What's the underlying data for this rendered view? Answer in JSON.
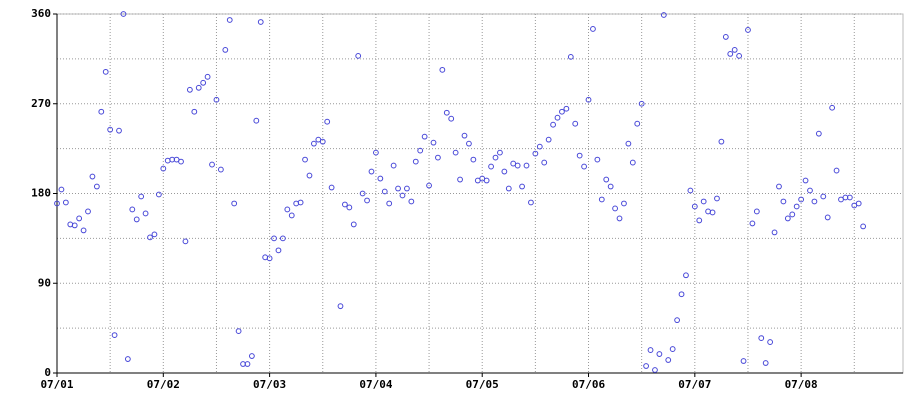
{
  "chart_data": {
    "type": "scatter",
    "x": [
      0,
      1,
      2,
      3,
      4,
      5,
      6,
      7,
      8,
      9,
      10,
      11,
      12,
      13,
      14,
      15,
      16,
      17,
      18,
      19,
      20,
      21,
      22,
      23,
      24,
      25,
      26,
      27,
      28,
      29,
      30,
      31,
      32,
      33,
      34,
      35,
      36,
      37,
      38,
      39,
      40,
      41,
      42,
      43,
      44,
      45,
      46,
      47,
      48,
      49,
      50,
      51,
      52,
      53,
      54,
      55,
      56,
      57,
      58,
      59,
      60,
      61,
      62,
      64,
      65,
      66,
      67,
      68,
      69,
      70,
      71,
      72,
      73,
      74,
      75,
      76,
      77,
      78,
      79,
      80,
      81,
      82,
      83,
      84,
      85,
      86,
      87,
      88,
      89,
      90,
      91,
      92,
      93,
      94,
      95,
      96,
      97,
      98,
      99,
      100,
      101,
      102,
      103,
      104,
      105,
      106,
      107,
      108,
      109,
      110,
      111,
      112,
      113,
      114,
      115,
      116,
      117,
      118,
      119,
      120,
      121,
      122,
      123,
      124,
      125,
      126,
      127,
      128,
      129,
      130,
      131,
      132,
      133,
      134,
      135,
      136,
      137,
      138,
      139,
      140,
      141,
      142,
      143,
      144,
      145,
      146,
      147,
      148,
      149,
      150,
      151,
      152,
      153,
      154,
      155,
      156,
      157,
      158,
      159,
      160,
      161,
      162,
      163,
      164,
      165,
      166,
      167,
      168,
      169,
      170,
      171,
      172,
      173,
      174,
      175,
      176,
      177,
      178,
      179,
      180,
      181,
      182
    ],
    "values": [
      170,
      184,
      171,
      149,
      148,
      155,
      143,
      162,
      197,
      187,
      262,
      302,
      244,
      38,
      243,
      360,
      14,
      164,
      154,
      177,
      160,
      136,
      139,
      179,
      205,
      213,
      214,
      214,
      212,
      132,
      284,
      262,
      286,
      291,
      297,
      209,
      274,
      204,
      324,
      354,
      170,
      42,
      9,
      9,
      17,
      253,
      352,
      116,
      115,
      135,
      123,
      135,
      164,
      158,
      170,
      171,
      214,
      198,
      230,
      234,
      232,
      252,
      186,
      67,
      169,
      166,
      149,
      318,
      180,
      173,
      202,
      221,
      195,
      182,
      170,
      208,
      185,
      178,
      185,
      172,
      212,
      223,
      237,
      188,
      231,
      216,
      304,
      261,
      255,
      221,
      194,
      238,
      230,
      214,
      193,
      195,
      193,
      207,
      216,
      221,
      202,
      185,
      210,
      208,
      187,
      208,
      171,
      220,
      227,
      211,
      234,
      249,
      256,
      262,
      265,
      317,
      250,
      218,
      207,
      274,
      345,
      214,
      174,
      194,
      187,
      165,
      155,
      170,
      230,
      211,
      250,
      270,
      7,
      23,
      3,
      19,
      359,
      13,
      24,
      53,
      79,
      98,
      183,
      167,
      153,
      172,
      162,
      161,
      175,
      232,
      337,
      320,
      324,
      318,
      12,
      344,
      150,
      162,
      35,
      10,
      31,
      141,
      187,
      172,
      155,
      159,
      167,
      174,
      193,
      183,
      172,
      240,
      177,
      156,
      266,
      203,
      174,
      176,
      176,
      168,
      170,
      147
    ],
    "color": "#4848d8",
    "xlim": [
      0,
      191
    ],
    "xticks": [
      {
        "value": 0,
        "label": "07/01"
      },
      {
        "value": 24,
        "label": "07/02"
      },
      {
        "value": 48,
        "label": "07/03"
      },
      {
        "value": 72,
        "label": "07/04"
      },
      {
        "value": 96,
        "label": "07/05"
      },
      {
        "value": 120,
        "label": "07/06"
      },
      {
        "value": 144,
        "label": "07/07"
      },
      {
        "value": 168,
        "label": "07/08"
      }
    ],
    "xminor": [
      12,
      36,
      60,
      84,
      108,
      132,
      156,
      180
    ],
    "ylim": [
      0,
      360
    ],
    "yticks": [
      0,
      90,
      180,
      270,
      360
    ],
    "yminor": [
      45,
      135,
      225,
      315
    ],
    "grid": true
  }
}
